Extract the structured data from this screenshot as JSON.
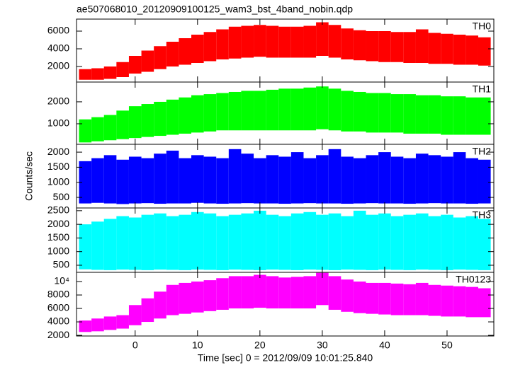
{
  "chart_data": [
    {
      "type": "range",
      "title": "ae507068010_20120909100125_wam3_bst_4band_nobin.qdp",
      "xlim": [
        -9.4,
        57.5
      ],
      "xticks": [
        0,
        10,
        20,
        30,
        40,
        50
      ],
      "ylim": [
        240,
        7360
      ],
      "yticks": [
        2000,
        4000,
        6000
      ],
      "x": [
        -8,
        -6,
        -4,
        -2,
        0,
        2,
        4,
        6,
        8,
        10,
        12,
        14,
        16,
        18,
        20,
        22,
        24,
        26,
        28,
        30,
        32,
        34,
        36,
        38,
        40,
        42,
        44,
        46,
        48,
        50,
        52,
        54,
        56
      ],
      "series": [
        {
          "name": "TH0",
          "color": "#ff0000",
          "low": [
            500,
            500,
            600,
            800,
            1200,
            1400,
            1700,
            2000,
            2200,
            2400,
            2600,
            2800,
            2900,
            3000,
            3100,
            3000,
            3000,
            3000,
            3000,
            3200,
            3000,
            2800,
            2700,
            2600,
            2500,
            2500,
            2400,
            2400,
            2300,
            2300,
            2200,
            2200,
            2100
          ],
          "high": [
            1700,
            1800,
            2000,
            2500,
            3200,
            3800,
            4300,
            4800,
            5200,
            5600,
            5900,
            6200,
            6500,
            6600,
            6700,
            6600,
            6500,
            6500,
            6600,
            7000,
            6700,
            6300,
            6100,
            6000,
            6000,
            5900,
            5900,
            6200,
            5800,
            5700,
            5600,
            5500,
            5300
          ]
        }
      ]
    },
    {
      "type": "range",
      "xlim": [
        -9.4,
        57.5
      ],
      "xticks": [
        0,
        10,
        20,
        30,
        40,
        50
      ],
      "ylim": [
        65,
        2900
      ],
      "yticks": [
        1000,
        2000
      ],
      "x": [
        -8,
        -6,
        -4,
        -2,
        0,
        2,
        4,
        6,
        8,
        10,
        12,
        14,
        16,
        18,
        20,
        22,
        24,
        26,
        28,
        30,
        32,
        34,
        36,
        38,
        40,
        42,
        44,
        46,
        48,
        50,
        52,
        54,
        56
      ],
      "series": [
        {
          "name": "TH1",
          "color": "#00ff00",
          "low": [
            150,
            200,
            250,
            300,
            350,
            400,
            450,
            500,
            550,
            600,
            650,
            700,
            700,
            700,
            700,
            700,
            700,
            700,
            700,
            750,
            700,
            650,
            650,
            600,
            600,
            600,
            550,
            550,
            550,
            500,
            500,
            500,
            500
          ],
          "high": [
            1200,
            1300,
            1400,
            1600,
            1800,
            1900,
            2000,
            2100,
            2200,
            2300,
            2350,
            2400,
            2450,
            2500,
            2500,
            2550,
            2600,
            2600,
            2650,
            2700,
            2600,
            2500,
            2450,
            2400,
            2400,
            2350,
            2350,
            2300,
            2300,
            2250,
            2250,
            2200,
            2200
          ]
        }
      ]
    },
    {
      "type": "range",
      "ylabel": "Counts/sec",
      "xlim": [
        -9.4,
        57.5
      ],
      "xticks": [
        0,
        10,
        20,
        30,
        40,
        50
      ],
      "ylim": [
        150,
        2260
      ],
      "yticks": [
        500,
        1000,
        1500,
        2000
      ],
      "x": [
        -8,
        -6,
        -4,
        -2,
        0,
        2,
        4,
        6,
        8,
        10,
        12,
        14,
        16,
        18,
        20,
        22,
        24,
        26,
        28,
        30,
        32,
        34,
        36,
        38,
        40,
        42,
        44,
        46,
        48,
        50,
        52,
        54,
        56
      ],
      "series": [
        {
          "name": "TH2",
          "color": "#0000ff",
          "low": [
            300,
            320,
            300,
            280,
            300,
            310,
            290,
            300,
            300,
            320,
            300,
            290,
            300,
            310,
            300,
            300,
            290,
            300,
            310,
            300,
            300,
            290,
            300,
            310,
            300,
            300,
            290,
            300,
            310,
            300,
            300,
            290,
            300
          ],
          "high": [
            1700,
            1800,
            1900,
            1750,
            1850,
            1800,
            1950,
            2050,
            1800,
            1900,
            1850,
            1800,
            2100,
            1950,
            1800,
            1900,
            1850,
            2000,
            1800,
            1900,
            2100,
            1850,
            1800,
            1900,
            2000,
            1850,
            1800,
            1950,
            1900,
            1850,
            2000,
            1800,
            1750
          ]
        }
      ]
    },
    {
      "type": "range",
      "xlim": [
        -9.4,
        57.5
      ],
      "xticks": [
        0,
        10,
        20,
        30,
        40,
        50
      ],
      "ylim": [
        240,
        2600
      ],
      "yticks": [
        500,
        1000,
        1500,
        2000,
        2500
      ],
      "x": [
        -8,
        -6,
        -4,
        -2,
        0,
        2,
        4,
        6,
        8,
        10,
        12,
        14,
        16,
        18,
        20,
        22,
        24,
        26,
        28,
        30,
        32,
        34,
        36,
        38,
        40,
        42,
        44,
        46,
        48,
        50,
        52,
        54,
        56
      ],
      "series": [
        {
          "name": "TH3",
          "color": "#00ffff",
          "low": [
            350,
            330,
            320,
            340,
            330,
            320,
            340,
            330,
            320,
            340,
            330,
            320,
            340,
            330,
            320,
            340,
            330,
            320,
            340,
            330,
            320,
            340,
            330,
            320,
            340,
            330,
            320,
            340,
            330,
            320,
            340,
            330,
            320
          ],
          "high": [
            2000,
            2100,
            2200,
            2300,
            2250,
            2350,
            2400,
            2300,
            2350,
            2450,
            2400,
            2300,
            2350,
            2400,
            2500,
            2350,
            2300,
            2400,
            2450,
            2350,
            2400,
            2300,
            2500,
            2350,
            2400,
            2300,
            2350,
            2400,
            2300,
            2350,
            2250,
            2300,
            2200
          ]
        }
      ]
    },
    {
      "type": "range",
      "xlabel": "Time [sec] 0 = 2012/09/09 10:01:25.840",
      "xlim": [
        -9.4,
        57.5
      ],
      "xticks": [
        0,
        10,
        20,
        30,
        40,
        50
      ],
      "ylim": [
        1900,
        11370
      ],
      "yticks": [
        2000,
        4000,
        6000,
        8000,
        {
          "value": 10000,
          "label": "10⁴"
        }
      ],
      "x": [
        -8,
        -6,
        -4,
        -2,
        0,
        2,
        4,
        6,
        8,
        10,
        12,
        14,
        16,
        18,
        20,
        22,
        24,
        26,
        28,
        30,
        32,
        34,
        36,
        38,
        40,
        42,
        44,
        46,
        48,
        50,
        52,
        54,
        56
      ],
      "series": [
        {
          "name": "TH0123",
          "color": "#ff00ff",
          "low": [
            2500,
            2600,
            2800,
            3000,
            3500,
            4000,
            4500,
            5000,
            5200,
            5400,
            5600,
            5800,
            6000,
            6000,
            6100,
            6000,
            6000,
            6000,
            6000,
            6500,
            5800,
            5500,
            5300,
            5200,
            5100,
            5000,
            5000,
            5000,
            4900,
            4800,
            4800,
            4700,
            4700
          ],
          "high": [
            4200,
            4500,
            4800,
            5000,
            6500,
            7500,
            8500,
            9500,
            9800,
            10000,
            10200,
            10500,
            10800,
            10800,
            11000,
            10800,
            10600,
            10700,
            10800,
            11300,
            10800,
            10300,
            10000,
            9800,
            9800,
            9700,
            9600,
            9800,
            9500,
            9400,
            9300,
            9200,
            9000
          ]
        }
      ]
    }
  ]
}
